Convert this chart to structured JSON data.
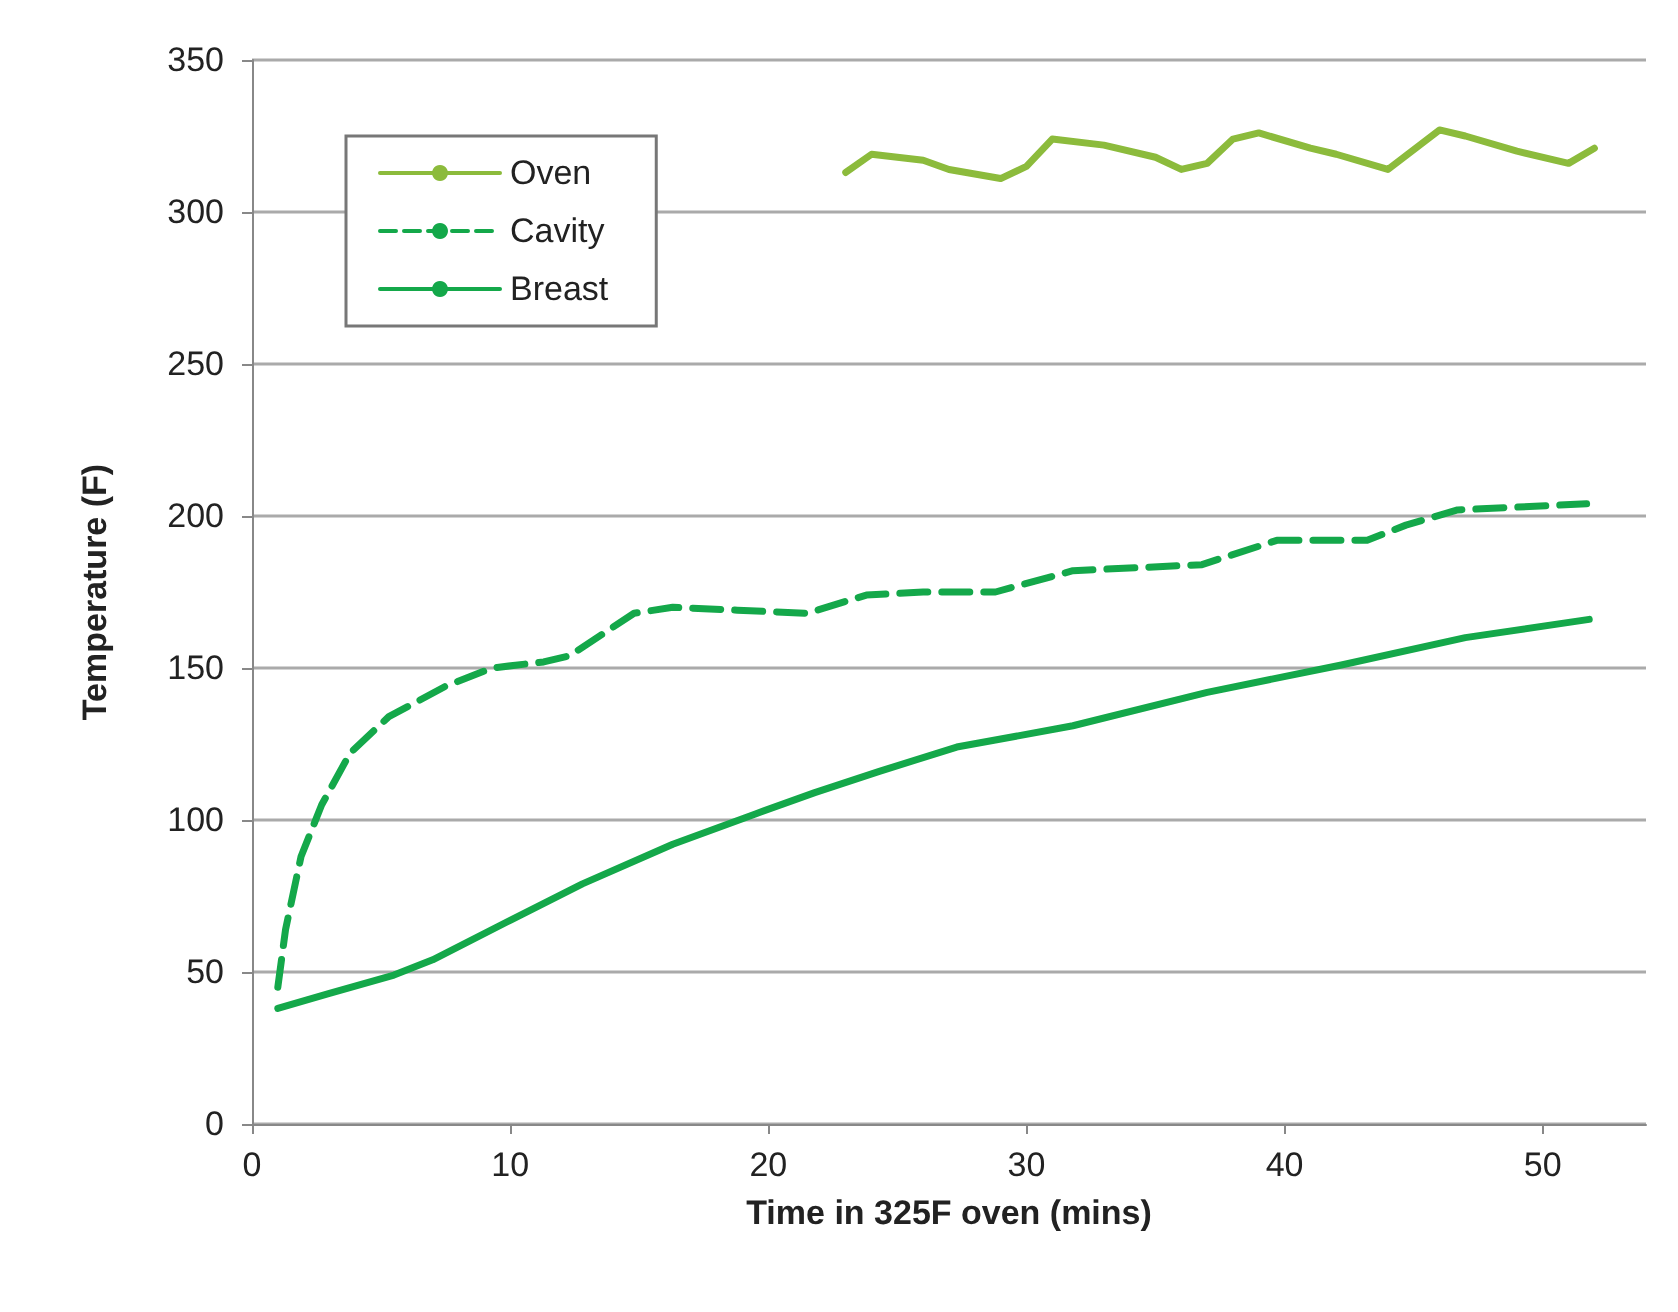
{
  "chart_data": {
    "type": "line",
    "xlabel": "Time in 325F oven (mins)",
    "ylabel": "Temperature (F)",
    "xlim": [
      0,
      54
    ],
    "xticks": [
      0,
      10,
      20,
      30,
      40,
      50
    ],
    "ylim": [
      0,
      350
    ],
    "yticks": [
      0,
      50,
      100,
      150,
      200,
      250,
      300,
      350
    ],
    "grid": "y",
    "legend": "top left",
    "marker": "none",
    "series": [
      {
        "name": "Oven",
        "color": "#8cbb3c",
        "line_style": "solid",
        "x": [
          23,
          24,
          26,
          27,
          29,
          30,
          31,
          33,
          35,
          36,
          37,
          38,
          39,
          41,
          42,
          44,
          46,
          47,
          49,
          51,
          52
        ],
        "values": [
          313,
          319,
          317,
          314,
          311,
          315,
          324,
          322,
          318,
          314,
          316,
          324,
          326,
          321,
          319,
          314,
          327,
          325,
          320,
          316,
          321
        ]
      },
      {
        "name": "Cavity",
        "color": "#14a84a",
        "line_style": "dashed",
        "x": [
          1,
          1.3,
          1.9,
          2.7,
          3.8,
          5.3,
          7.5,
          9.3,
          11.3,
          12.3,
          14.8,
          16.3,
          18.8,
          21.5,
          23.8,
          26,
          28.8,
          31.8,
          36.8,
          39.7,
          43.2,
          44.7,
          46.7,
          51.7
        ],
        "values": [
          45,
          64,
          88,
          105,
          122,
          134,
          144,
          150,
          152,
          154,
          168,
          170,
          169,
          168,
          174,
          175,
          175,
          182,
          184,
          192,
          192,
          197,
          202,
          204
        ]
      },
      {
        "name": "Breast",
        "color": "#14a84a",
        "line_style": "solid",
        "x": [
          1,
          3,
          5.5,
          7,
          10,
          12.8,
          16.3,
          19.5,
          21.8,
          24.3,
          27.3,
          31.8,
          37,
          42.2,
          47,
          51.8
        ],
        "values": [
          38,
          43,
          49,
          54,
          67,
          79,
          92,
          102,
          109,
          116,
          124,
          131,
          142,
          151,
          160,
          166
        ]
      }
    ]
  }
}
